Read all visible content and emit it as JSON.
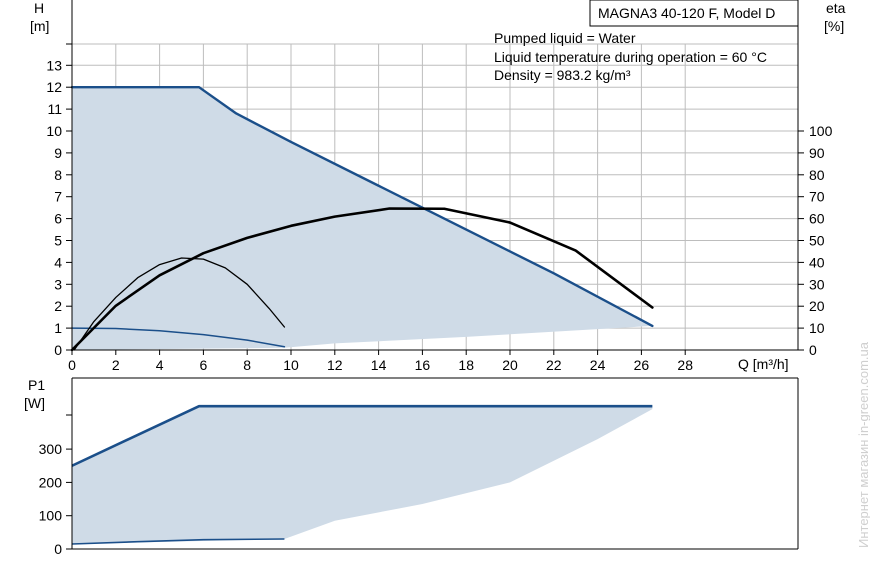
{
  "title": "MAGNA3 40-120 F, Model D",
  "notes": [
    "Pumped liquid = Water",
    "Liquid temperature during operation = 60 °C",
    "Density = 983.2 kg/m³"
  ],
  "watermark": "Интернет магазин  in-green.com.ua",
  "colors": {
    "area": "#cfdbe7",
    "curve_blue": "#1b4f8a",
    "curve_black": "#000000",
    "grid": "#bdbdbd"
  },
  "chart_data": [
    {
      "type": "line",
      "xlabel": "Q [m³/h]",
      "ylabel": "H",
      "ylabel_unit": "[m]",
      "y2label": "eta",
      "y2label_unit": "[%]",
      "xlim": [
        0,
        28
      ],
      "xticks": [
        0,
        2,
        4,
        6,
        8,
        10,
        12,
        14,
        16,
        18,
        20,
        22,
        24,
        26,
        28
      ],
      "ylim": [
        0,
        13
      ],
      "yticks": [
        0,
        1,
        2,
        3,
        4,
        5,
        6,
        7,
        8,
        9,
        10,
        11,
        12,
        13
      ],
      "y2lim": [
        0,
        100
      ],
      "y2ticks": [
        0,
        10,
        20,
        30,
        40,
        50,
        60,
        70,
        80,
        90,
        100
      ],
      "grid": true,
      "operating_area": {
        "upper": [
          [
            0,
            12
          ],
          [
            5.8,
            12
          ],
          [
            7.5,
            10.8
          ],
          [
            10,
            9.5
          ],
          [
            14,
            7.5
          ],
          [
            18,
            5.5
          ],
          [
            22,
            3.5
          ],
          [
            26.5,
            1.1
          ]
        ],
        "lower": [
          [
            26.5,
            1.1
          ],
          [
            18,
            0.6
          ],
          [
            12,
            0.3
          ],
          [
            9.7,
            0.1
          ],
          [
            0,
            0
          ]
        ]
      },
      "series": [
        {
          "role": "max_curve_H",
          "axis": "left",
          "color": "#1b4f8a",
          "x": [
            0,
            5.8,
            7.5,
            10,
            14,
            18,
            22,
            26.5
          ],
          "y": [
            12,
            12,
            10.8,
            9.5,
            7.5,
            5.5,
            3.5,
            1.1
          ]
        },
        {
          "role": "min_curve_H",
          "axis": "left",
          "color": "#1b4f8a",
          "x": [
            0,
            2,
            4,
            6,
            8,
            9.7
          ],
          "y": [
            1,
            0.98,
            0.88,
            0.7,
            0.45,
            0.15
          ]
        },
        {
          "role": "eta_max",
          "axis": "right",
          "color": "#000000",
          "x": [
            0,
            2,
            4,
            6,
            8,
            10,
            12,
            14.5,
            17,
            20,
            23,
            26.5
          ],
          "y": [
            0,
            20.2,
            34.1,
            44.2,
            51.2,
            56.7,
            60.9,
            64.6,
            64.5,
            58.2,
            45.4,
            19.4
          ]
        },
        {
          "role": "eta_min",
          "axis": "right",
          "color": "#000000",
          "x": [
            0.1,
            1,
            2,
            3,
            4,
            5,
            6,
            7,
            8,
            9,
            9.7
          ],
          "y": [
            0,
            13,
            24,
            33,
            39,
            42,
            41.5,
            37.5,
            30,
            19,
            10.5
          ]
        }
      ]
    },
    {
      "type": "line",
      "xlabel": "",
      "ylabel": "P1",
      "ylabel_unit": "[W]",
      "xlim": [
        0,
        28
      ],
      "ylim": [
        0,
        400
      ],
      "yticks": [
        0,
        100,
        200,
        300
      ],
      "grid": false,
      "operating_area": {
        "upper": [
          [
            0,
            250
          ],
          [
            5.8,
            429
          ],
          [
            26.5,
            429
          ]
        ],
        "lower": [
          [
            26.5,
            420
          ],
          [
            24,
            330
          ],
          [
            20,
            200
          ],
          [
            16,
            135
          ],
          [
            12,
            85
          ],
          [
            9.7,
            30
          ],
          [
            0,
            15
          ]
        ]
      },
      "series": [
        {
          "role": "P1_max",
          "color": "#1b4f8a",
          "x": [
            0,
            5.8,
            26.5
          ],
          "y": [
            250,
            429,
            429
          ]
        },
        {
          "role": "P1_min",
          "color": "#1b4f8a",
          "x": [
            0,
            3,
            6,
            9.7
          ],
          "y": [
            15,
            22,
            28,
            30
          ]
        }
      ]
    }
  ]
}
